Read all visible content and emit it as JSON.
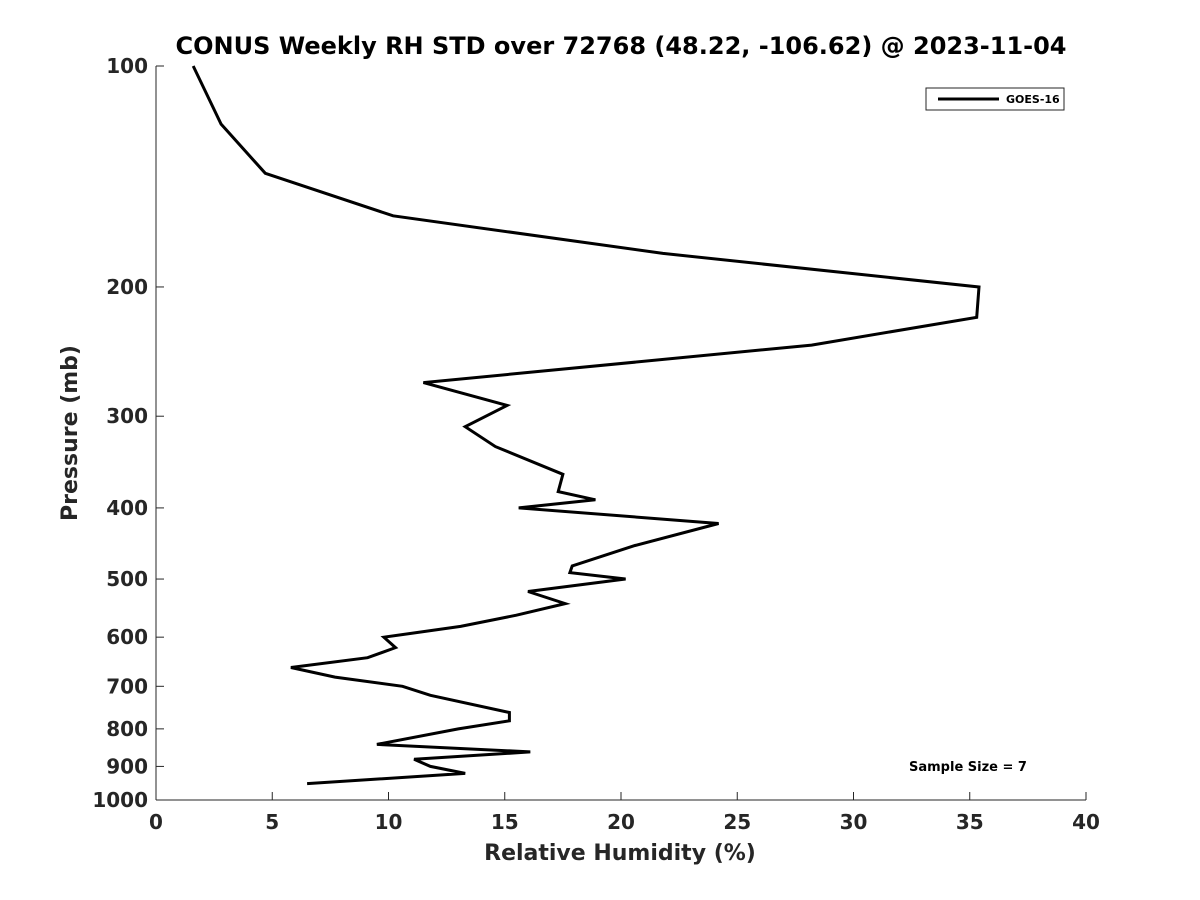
{
  "chart_data": {
    "type": "line",
    "title": "CONUS Weekly RH STD over 72768 (48.22, -106.62) @ 2023-11-04",
    "xlabel": "Relative Humidity (%)",
    "ylabel": "Pressure (mb)",
    "xlim": [
      0,
      40
    ],
    "ylim": [
      100,
      1000
    ],
    "yscale": "log",
    "yreversed": true,
    "xticks": [
      0,
      5,
      10,
      15,
      20,
      25,
      30,
      35,
      40
    ],
    "yticks": [
      100,
      200,
      300,
      400,
      500,
      600,
      700,
      800,
      900,
      1000
    ],
    "legend_position": "top-right",
    "series": [
      {
        "name": "GOES-16",
        "color": "#000000",
        "x": [
          1.6,
          2.8,
          4.7,
          10.2,
          21.8,
          35.4,
          35.3,
          28.2,
          11.5,
          15.1,
          13.3,
          14.6,
          17.5,
          17.3,
          18.9,
          15.6,
          24.2,
          20.6,
          17.9,
          17.8,
          20.2,
          16.0,
          17.6,
          15.5,
          13.1,
          9.8,
          10.3,
          9.1,
          5.8,
          7.7,
          10.6,
          11.8,
          15.2,
          15.2,
          13.0,
          9.5,
          16.1,
          11.1,
          11.8,
          13.3,
          6.5
        ],
        "y": [
          100,
          120,
          140,
          160,
          180,
          200,
          220,
          240,
          270,
          290,
          310,
          330,
          360,
          380,
          390,
          400,
          420,
          450,
          480,
          490,
          500,
          520,
          540,
          560,
          580,
          600,
          620,
          640,
          660,
          680,
          700,
          720,
          760,
          780,
          800,
          840,
          860,
          880,
          900,
          920,
          950
        ]
      }
    ],
    "annotation": "Sample Size = 7"
  }
}
